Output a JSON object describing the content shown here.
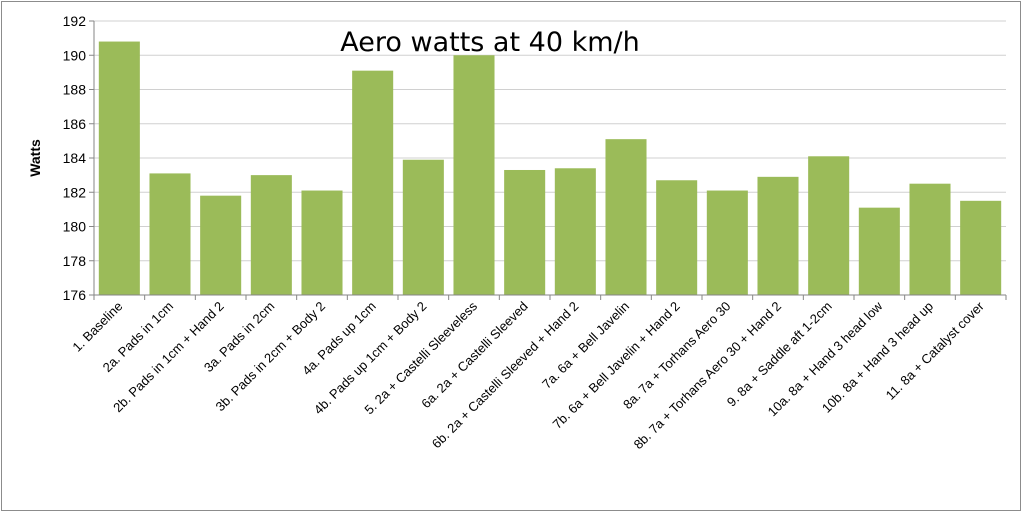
{
  "chart_data": {
    "type": "bar",
    "title": "Aero watts at 40 km/h",
    "xlabel": "",
    "ylabel": "Watts",
    "ylim": [
      176,
      192
    ],
    "yticks": [
      176,
      178,
      180,
      182,
      184,
      186,
      188,
      190,
      192
    ],
    "grid": true,
    "legend": "none",
    "bar_color": "#9bbb59",
    "categories": [
      "1. Baseline",
      "2a. Pads in 1cm",
      "2b. Pads in 1cm + Hand 2",
      "3a. Pads in 2cm",
      "3b. Pads in 2cm + Body 2",
      "4a. Pads up 1cm",
      "4b. Pads up 1cm + Body 2",
      "5. 2a + Castelli Sleeveless",
      "6a. 2a + Castelli Sleeved",
      "6b. 2a + Castelli Sleeved + Hand 2",
      "7a. 6a + Bell Javelin",
      "7b. 6a + Bell Javelin + Hand 2",
      "8a. 7a + Torhans Aero 30",
      "8b. 7a + Torhans Aero 30 + Hand 2",
      "9. 8a + Saddle aft 1-2cm",
      "10a. 8a + Hand 3 head low",
      "10b. 8a + Hand 3 head up",
      "11. 8a + Catalyst cover"
    ],
    "values": [
      190.8,
      183.1,
      181.8,
      183.0,
      182.1,
      189.1,
      183.9,
      190.0,
      183.3,
      183.4,
      185.1,
      182.7,
      182.1,
      182.9,
      184.1,
      181.1,
      182.5,
      181.5
    ]
  }
}
